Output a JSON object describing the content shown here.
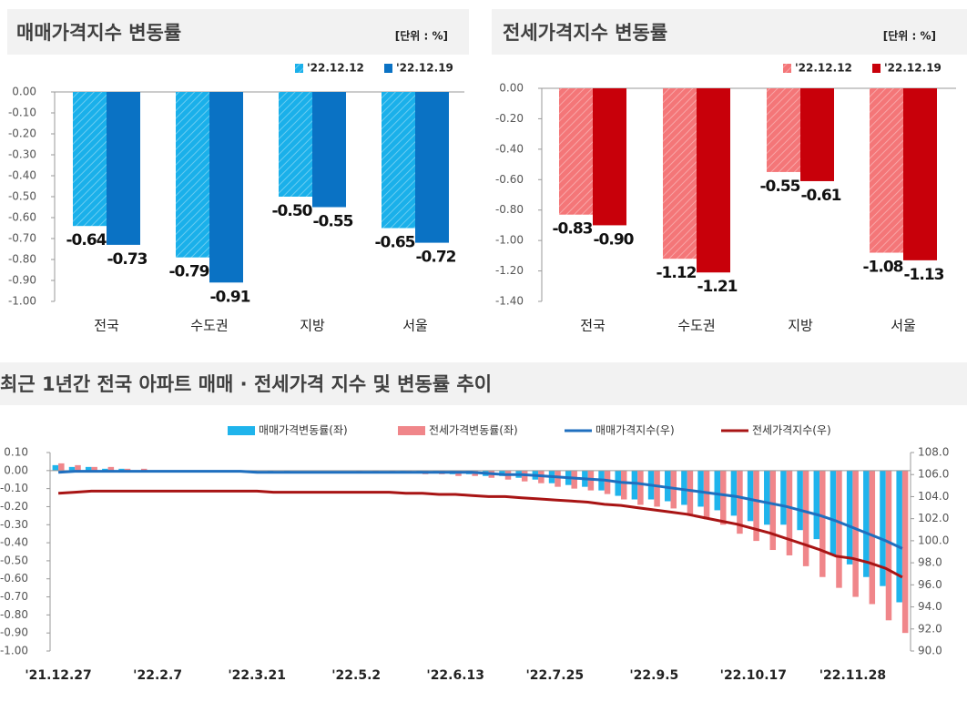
{
  "chart_data": [
    {
      "type": "bar",
      "title": "매매가격지수 변동률",
      "unit": "[단위 : %]",
      "categories": [
        "전국",
        "수도권",
        "지방",
        "서울"
      ],
      "series": [
        {
          "name": "'22.12.12",
          "color": "#1ab0ea",
          "hatch": true,
          "values": [
            -0.64,
            -0.79,
            -0.5,
            -0.65
          ],
          "value_labels": [
            "-0.64",
            "-0.79",
            "-0.50",
            "-0.65"
          ]
        },
        {
          "name": "'22.12.19",
          "color": "#0a72c4",
          "hatch": false,
          "values": [
            -0.73,
            -0.91,
            -0.55,
            -0.72
          ],
          "value_labels": [
            "-0.73",
            "-0.91",
            "-0.55",
            "-0.72"
          ]
        }
      ],
      "ylim": [
        -1.0,
        0.0
      ],
      "yticks": [
        {
          "value": 0,
          "label": "0.00"
        },
        {
          "value": -0.1,
          "label": "-0.10"
        },
        {
          "value": -0.2,
          "label": "-0.20"
        },
        {
          "value": -0.3,
          "label": "-0.30"
        },
        {
          "value": -0.4,
          "label": "-0.40"
        },
        {
          "value": -0.5,
          "label": "-0.50"
        },
        {
          "value": -0.6,
          "label": "-0.60"
        },
        {
          "value": -0.7,
          "label": "-0.70"
        },
        {
          "value": -0.8,
          "label": "-0.80"
        },
        {
          "value": -0.9,
          "label": "-0.90"
        },
        {
          "value": -1.0,
          "label": "-1.00"
        }
      ],
      "legend": "top-right"
    },
    {
      "type": "bar",
      "title": "전세가격지수 변동률",
      "unit": "[단위 : %]",
      "categories": [
        "전국",
        "수도권",
        "지방",
        "서울"
      ],
      "series": [
        {
          "name": "'22.12.12",
          "color": "#f47678",
          "hatch": true,
          "values": [
            -0.83,
            -1.12,
            -0.55,
            -1.08
          ],
          "value_labels": [
            "-0.83",
            "-1.12",
            "-0.55",
            "-1.08"
          ]
        },
        {
          "name": "'22.12.19",
          "color": "#c8000a",
          "hatch": false,
          "values": [
            -0.9,
            -1.21,
            -0.61,
            -1.13
          ],
          "value_labels": [
            "-0.90",
            "-1.21",
            "-0.61",
            "-1.13"
          ]
        }
      ],
      "ylim": [
        -1.4,
        0.0
      ],
      "yticks": [
        {
          "value": 0,
          "label": "0.00"
        },
        {
          "value": -0.2,
          "label": "-0.20"
        },
        {
          "value": -0.4,
          "label": "-0.40"
        },
        {
          "value": -0.6,
          "label": "-0.60"
        },
        {
          "value": -0.8,
          "label": "-0.80"
        },
        {
          "value": -1.0,
          "label": "-1.00"
        },
        {
          "value": -1.2,
          "label": "-1.20"
        },
        {
          "value": -1.4,
          "label": "-1.40"
        }
      ],
      "legend": "top-right"
    },
    {
      "type": "bar_line",
      "title": "최근 1년간 전국 아파트 매매 · 전세가격 지수 및 변동률 추이",
      "categories": [
        "'21.12.27",
        null,
        null,
        null,
        null,
        null,
        "'22.2.7",
        null,
        null,
        null,
        null,
        null,
        "'22.3.21",
        null,
        null,
        null,
        null,
        null,
        "'22.5.2",
        null,
        null,
        null,
        null,
        null,
        "'22.6.13",
        null,
        null,
        null,
        null,
        null,
        "'22.7.25",
        null,
        null,
        null,
        null,
        null,
        "'22.9.5",
        null,
        null,
        null,
        null,
        null,
        "'22.10.17",
        null,
        null,
        null,
        null,
        null,
        "'22.11.28",
        null,
        null,
        null
      ],
      "series": [
        {
          "name": "매매가격변동률(좌)",
          "type": "bar",
          "color": "#1fb4ec",
          "values": [
            0.03,
            0.02,
            0.02,
            0.01,
            0.01,
            0.0,
            0.0,
            0.0,
            -0.01,
            -0.01,
            -0.01,
            0.0,
            -0.01,
            -0.01,
            -0.01,
            0.0,
            0.0,
            0.0,
            0.0,
            0.0,
            0.0,
            -0.01,
            -0.01,
            -0.01,
            -0.02,
            -0.02,
            -0.03,
            -0.03,
            -0.04,
            -0.05,
            -0.07,
            -0.08,
            -0.09,
            -0.11,
            -0.14,
            -0.16,
            -0.16,
            -0.17,
            -0.19,
            -0.2,
            -0.22,
            -0.25,
            -0.28,
            -0.3,
            -0.3,
            -0.33,
            -0.38,
            -0.47,
            -0.52,
            -0.59,
            -0.64,
            -0.73
          ]
        },
        {
          "name": "전세가격변동률(좌)",
          "type": "bar",
          "color": "#f0868a",
          "values": [
            0.04,
            0.03,
            0.02,
            0.02,
            0.01,
            0.01,
            0.0,
            0.0,
            0.0,
            -0.01,
            -0.01,
            0.0,
            0.0,
            0.0,
            0.0,
            0.0,
            0.0,
            0.0,
            -0.01,
            -0.01,
            -0.01,
            -0.01,
            -0.02,
            -0.02,
            -0.03,
            -0.03,
            -0.04,
            -0.05,
            -0.06,
            -0.07,
            -0.09,
            -0.1,
            -0.11,
            -0.13,
            -0.16,
            -0.19,
            -0.2,
            -0.21,
            -0.25,
            -0.27,
            -0.3,
            -0.35,
            -0.39,
            -0.44,
            -0.47,
            -0.53,
            -0.59,
            -0.65,
            -0.7,
            -0.74,
            -0.83,
            -0.9
          ]
        },
        {
          "name": "매매가격지수(우)",
          "type": "line",
          "axis": "y2",
          "color": "#1f6fbf",
          "values": [
            106.2,
            106.3,
            106.3,
            106.3,
            106.3,
            106.3,
            106.3,
            106.3,
            106.3,
            106.3,
            106.3,
            106.3,
            106.2,
            106.2,
            106.2,
            106.2,
            106.2,
            106.2,
            106.2,
            106.2,
            106.2,
            106.2,
            106.2,
            106.2,
            106.2,
            106.2,
            106.1,
            106.0,
            106.0,
            105.9,
            105.8,
            105.7,
            105.6,
            105.5,
            105.3,
            105.2,
            105.0,
            104.8,
            104.6,
            104.4,
            104.2,
            104.0,
            103.7,
            103.4,
            103.1,
            102.7,
            102.3,
            101.8,
            101.2,
            100.6,
            100.0,
            99.3
          ]
        },
        {
          "name": "전세가격지수(우)",
          "type": "line",
          "axis": "y2",
          "color": "#a81414",
          "values": [
            104.3,
            104.4,
            104.5,
            104.5,
            104.5,
            104.5,
            104.5,
            104.5,
            104.5,
            104.5,
            104.5,
            104.5,
            104.5,
            104.4,
            104.4,
            104.4,
            104.4,
            104.4,
            104.4,
            104.4,
            104.4,
            104.3,
            104.3,
            104.2,
            104.2,
            104.1,
            104.0,
            104.0,
            103.9,
            103.8,
            103.7,
            103.6,
            103.5,
            103.3,
            103.2,
            103.0,
            102.8,
            102.6,
            102.4,
            102.1,
            101.8,
            101.5,
            101.1,
            100.7,
            100.2,
            99.7,
            99.2,
            98.6,
            98.4,
            98.0,
            97.5,
            96.7
          ]
        }
      ],
      "ylim": [
        -1.0,
        0.1
      ],
      "yticks": [
        {
          "value": 0.1,
          "label": "0.10"
        },
        {
          "value": 0,
          "label": "0.00"
        },
        {
          "value": -0.1,
          "label": "-0.10"
        },
        {
          "value": -0.2,
          "label": "-0.20"
        },
        {
          "value": -0.3,
          "label": "-0.30"
        },
        {
          "value": -0.4,
          "label": "-0.40"
        },
        {
          "value": -0.5,
          "label": "-0.50"
        },
        {
          "value": -0.6,
          "label": "-0.60"
        },
        {
          "value": -0.7,
          "label": "-0.70"
        },
        {
          "value": -0.8,
          "label": "-0.80"
        },
        {
          "value": -0.9,
          "label": "-0.90"
        },
        {
          "value": -1.0,
          "label": "-1.00"
        }
      ],
      "y2lim": [
        90,
        108
      ],
      "y2ticks": [
        {
          "value": 108,
          "label": "108.0"
        },
        {
          "value": 106,
          "label": "106.0"
        },
        {
          "value": 104,
          "label": "104.0"
        },
        {
          "value": 102,
          "label": "102.0"
        },
        {
          "value": 100,
          "label": "100.0"
        },
        {
          "value": 98,
          "label": "98.0"
        },
        {
          "value": 96,
          "label": "96.0"
        },
        {
          "value": 94,
          "label": "94.0"
        },
        {
          "value": 92,
          "label": "92.0"
        },
        {
          "value": 90,
          "label": "90.0"
        }
      ],
      "legend": "top"
    }
  ]
}
